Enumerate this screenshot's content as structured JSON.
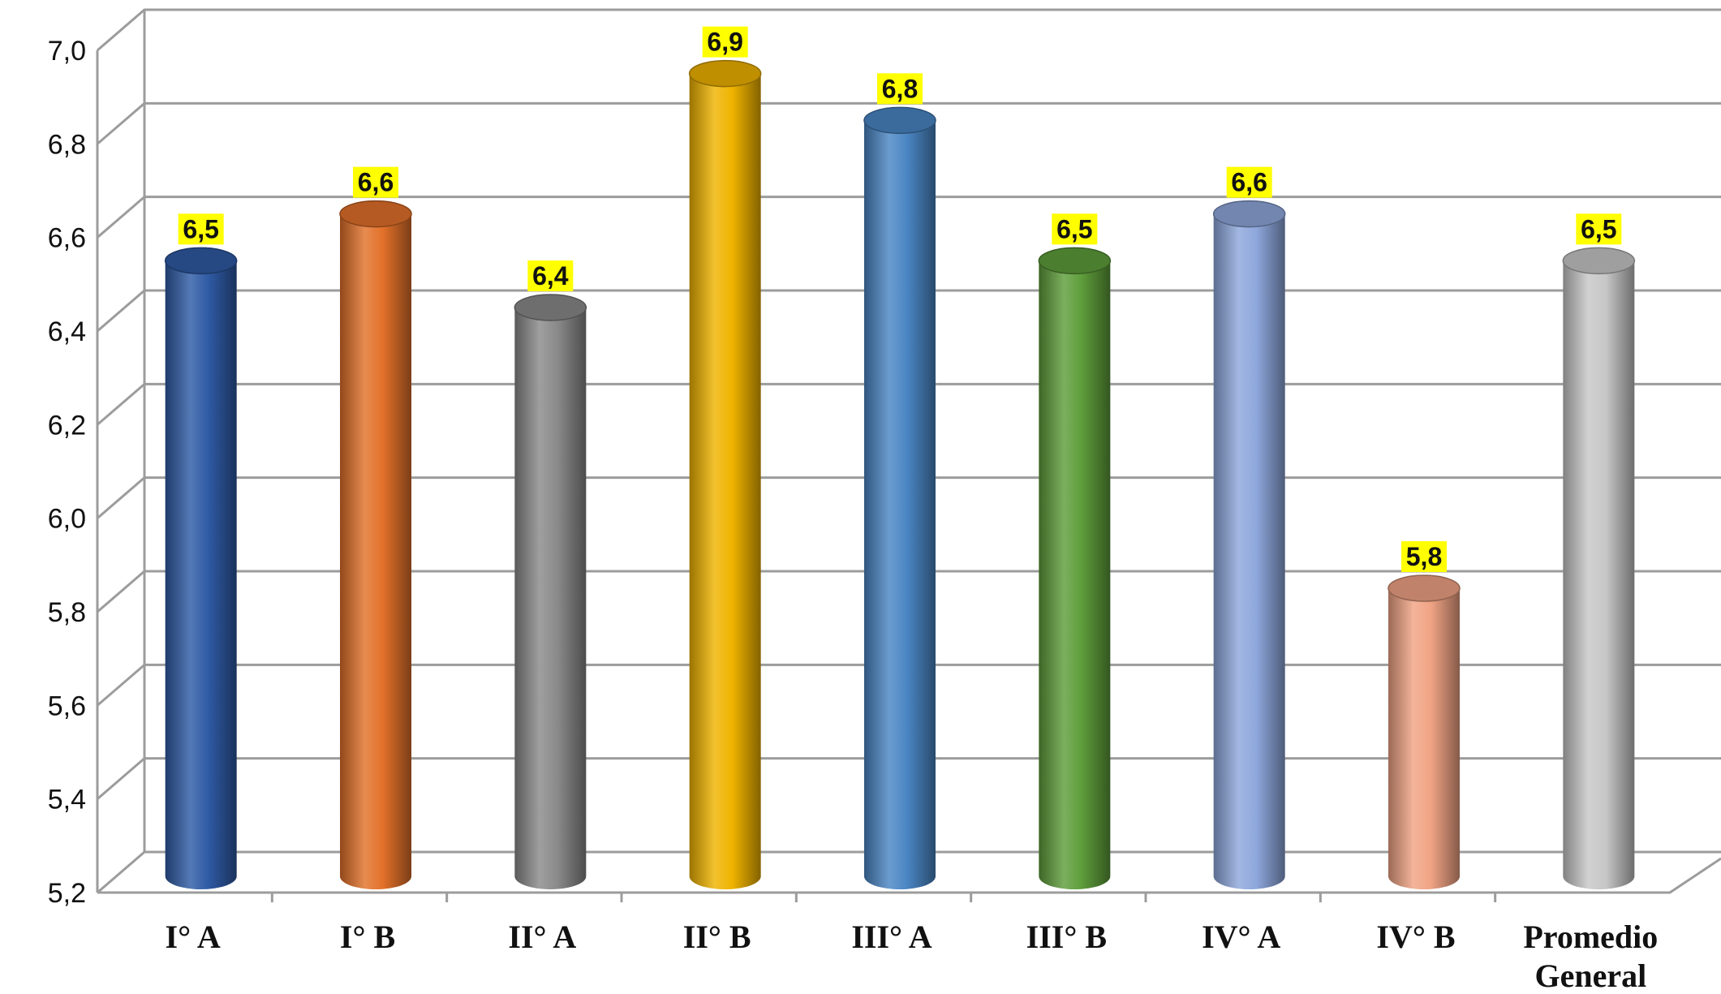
{
  "chart_data": {
    "type": "bar",
    "categories": [
      "I° A",
      "I° B",
      "II° A",
      "II° B",
      "III° A",
      "III° B",
      "IV° A",
      "IV° B",
      "Promedio|General"
    ],
    "values": [
      6.5,
      6.6,
      6.4,
      6.9,
      6.8,
      6.5,
      6.6,
      5.8,
      6.5
    ],
    "value_labels": [
      "6,5",
      "6,6",
      "6,4",
      "6,9",
      "6,8",
      "6,5",
      "6,6",
      "5,8",
      "6,5"
    ],
    "colors": [
      "#2f5ba5",
      "#e2712a",
      "#8a8a8a",
      "#efb300",
      "#4a86c4",
      "#5e9d3b",
      "#8ea7dc",
      "#f0a384",
      "#c7c7c7"
    ],
    "ylim": [
      5.2,
      7.0
    ],
    "yticks": [
      5.2,
      5.4,
      5.6,
      5.8,
      6.0,
      6.2,
      6.4,
      6.6,
      6.8,
      7.0
    ],
    "ytick_labels": [
      "5,2",
      "5,4",
      "5,6",
      "5,8",
      "6,0",
      "6,2",
      "6,4",
      "6,6",
      "6,8",
      "7,0"
    ],
    "grid": true,
    "bar_style": "3d-cylinder",
    "value_label_highlight": "#ffff00",
    "title": "",
    "xlabel": "",
    "ylabel": ""
  }
}
